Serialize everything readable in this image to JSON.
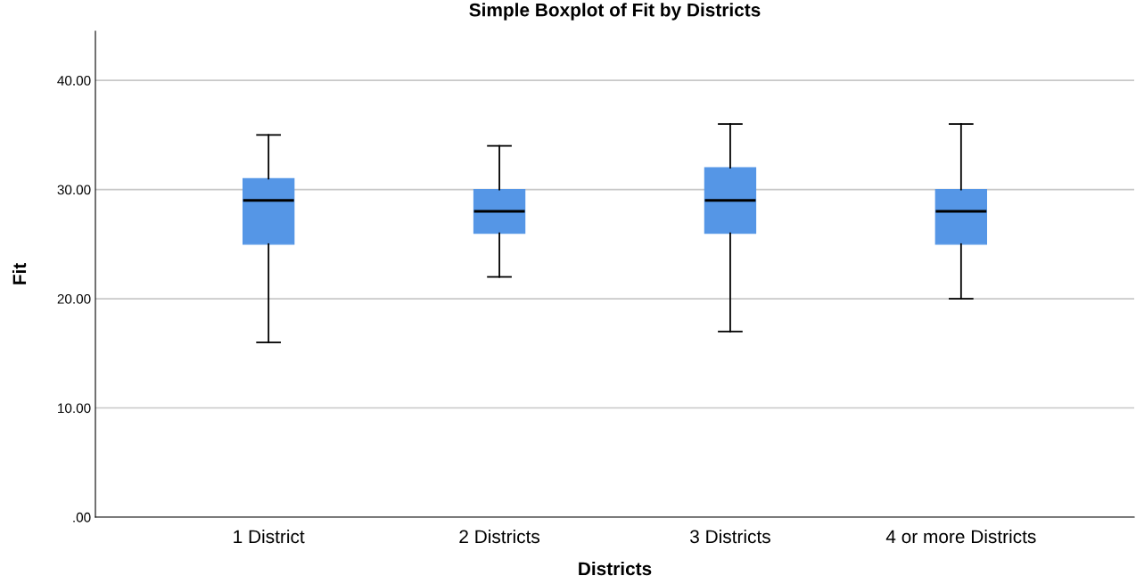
{
  "chart_data": {
    "type": "box",
    "title": "Simple Boxplot of Fit by Districts",
    "xlabel": "Districts",
    "ylabel": "Fit",
    "categories": [
      "1 District",
      "2 Districts",
      "3 Districts",
      "4 or more Districts"
    ],
    "color": "#5596e6",
    "boxes": [
      {
        "low": 16,
        "q1": 25,
        "median": 29,
        "q3": 31,
        "high": 35
      },
      {
        "low": 22,
        "q1": 26,
        "median": 28,
        "q3": 30,
        "high": 34
      },
      {
        "low": 17,
        "q1": 26,
        "median": 29,
        "q3": 32,
        "high": 36
      },
      {
        "low": 20,
        "q1": 25,
        "median": 28,
        "q3": 30,
        "high": 36
      }
    ],
    "ylim": [
      0,
      44.5
    ],
    "yticks": [
      {
        "value": 0,
        "label": ".00"
      },
      {
        "value": 10,
        "label": "10.00"
      },
      {
        "value": 20,
        "label": "20.00"
      },
      {
        "value": 30,
        "label": "30.00"
      },
      {
        "value": 40,
        "label": "40.00"
      }
    ],
    "grid": "y"
  }
}
